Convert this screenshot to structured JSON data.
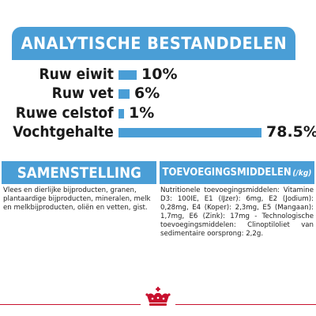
{
  "analysis": {
    "title": "ANALYTISCHE BESTANDDELEN",
    "items": [
      {
        "label": "Ruw eiwit",
        "value": "10%",
        "percent": 10
      },
      {
        "label": "Ruw vet",
        "value": "6%",
        "percent": 6
      },
      {
        "label": "Ruwe celstof",
        "value": "1%",
        "percent": 1
      },
      {
        "label": "Vochtgehalte",
        "value": "78.5%",
        "percent": 78.5
      }
    ]
  },
  "composition": {
    "title": "SAMENSTELLING",
    "text": "Vlees en dierlijke bijproducten, granen, plantaardige bijproducten, mineralen, melk en melkbijproducten, oliën en vetten, gist."
  },
  "additives": {
    "title": "TOEVOEGINGSMIDDELEN",
    "unit": "(/kg)",
    "text": "Nutritionele toevoegingsmiddelen: Vitamine D3: 100IE, E1 (IJzer): 6mg, E2 (Jodium): 0,28mg, E4 (Koper): 2,3mg, E5 (Mangaan): 1,7mg, E6 (Zink): 17mg - Technologische toevoegingsmiddelen: Clinoptiloliet van sedimentaire oorsprong: 2,2g."
  },
  "colors": {
    "accent": "#4a9ed6",
    "brand_red": "#c8102e"
  },
  "logo": {
    "icon": "crown-icon"
  }
}
